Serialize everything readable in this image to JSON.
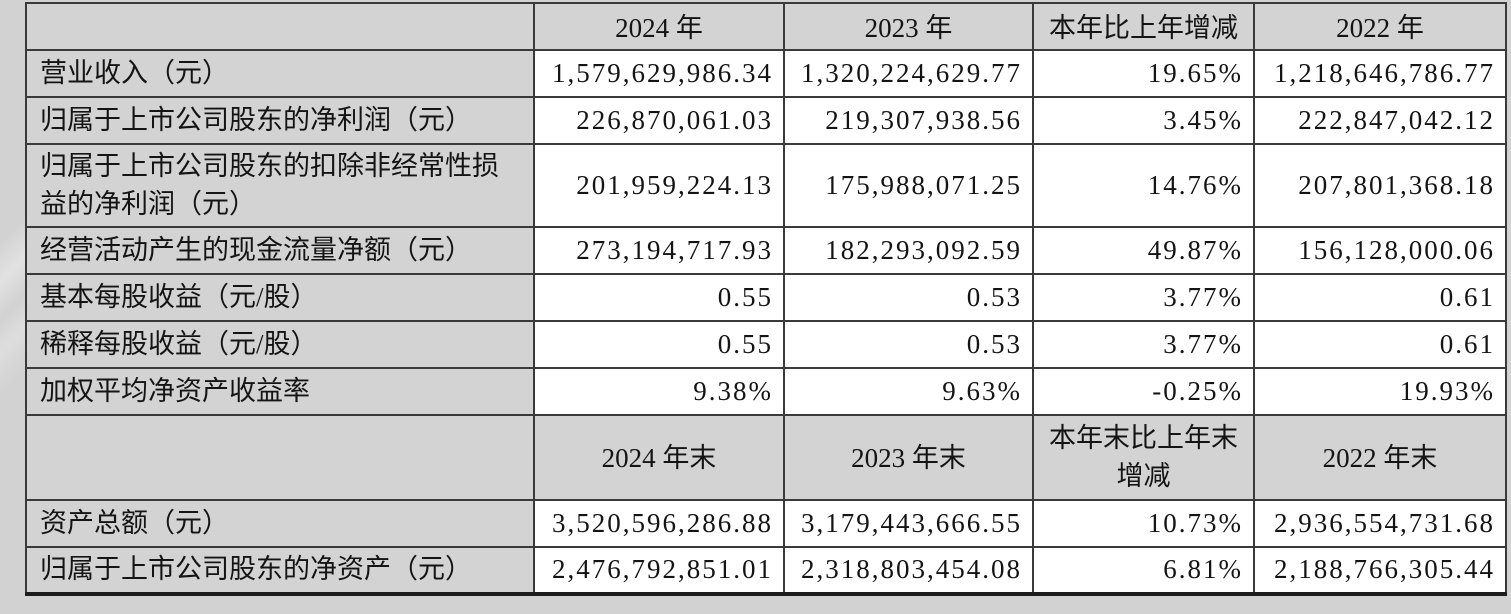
{
  "table": {
    "colors": {
      "page_bg": "#d2d2d2",
      "header_bg": "#d3d3d3",
      "cell_bg": "#ffffff",
      "border": "#3a3a3a",
      "text": "#141414"
    },
    "sections": [
      {
        "header": [
          "",
          "2024 年",
          "2023 年",
          "本年比上年增减",
          "2022 年"
        ],
        "rows": [
          {
            "label": "营业收入（元）",
            "values": [
              "1,579,629,986.34",
              "1,320,224,629.77",
              "19.65%",
              "1,218,646,786.77"
            ]
          },
          {
            "label": "归属于上市公司股东的净利润（元）",
            "values": [
              "226,870,061.03",
              "219,307,938.56",
              "3.45%",
              "222,847,042.12"
            ]
          },
          {
            "label": "归属于上市公司股东的扣除非经常性损益的净利润（元）",
            "values": [
              "201,959,224.13",
              "175,988,071.25",
              "14.76%",
              "207,801,368.18"
            ]
          },
          {
            "label": "经营活动产生的现金流量净额（元）",
            "values": [
              "273,194,717.93",
              "182,293,092.59",
              "49.87%",
              "156,128,000.06"
            ]
          },
          {
            "label": "基本每股收益（元/股）",
            "values": [
              "0.55",
              "0.53",
              "3.77%",
              "0.61"
            ]
          },
          {
            "label": "稀释每股收益（元/股）",
            "values": [
              "0.55",
              "0.53",
              "3.77%",
              "0.61"
            ]
          },
          {
            "label": "加权平均净资产收益率",
            "values": [
              "9.38%",
              "9.63%",
              "-0.25%",
              "19.93%"
            ]
          }
        ]
      },
      {
        "header": [
          "",
          "2024 年末",
          "2023 年末",
          "本年末比上年末增减",
          "2022 年末"
        ],
        "rows": [
          {
            "label": "资产总额（元）",
            "values": [
              "3,520,596,286.88",
              "3,179,443,666.55",
              "10.73%",
              "2,936,554,731.68"
            ]
          },
          {
            "label": "归属于上市公司股东的净资产（元）",
            "values": [
              "2,476,792,851.01",
              "2,318,803,454.08",
              "6.81%",
              "2,188,766,305.44"
            ]
          }
        ]
      }
    ]
  }
}
